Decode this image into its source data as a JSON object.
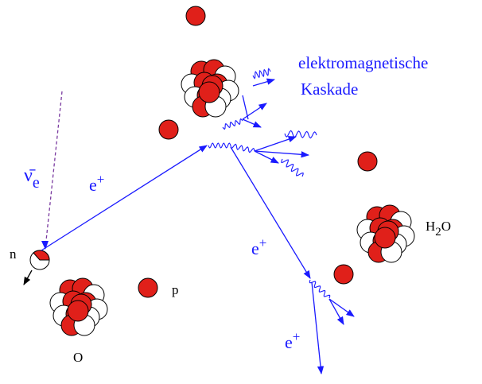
{
  "cascade_label": {
    "line1": "elektromagnetische",
    "line2": "Kaskade"
  },
  "antineutrino": {
    "symbol": "ν̄",
    "subscript": "e"
  },
  "positrons": [
    {
      "symbol": "e",
      "charge": "+"
    },
    {
      "symbol": "e",
      "charge": "+"
    },
    {
      "symbol": "e",
      "charge": "+"
    }
  ],
  "neutron": "n",
  "proton": "p",
  "oxygen": "O",
  "water": {
    "h": "H",
    "sub": "2",
    "o": "O"
  }
}
